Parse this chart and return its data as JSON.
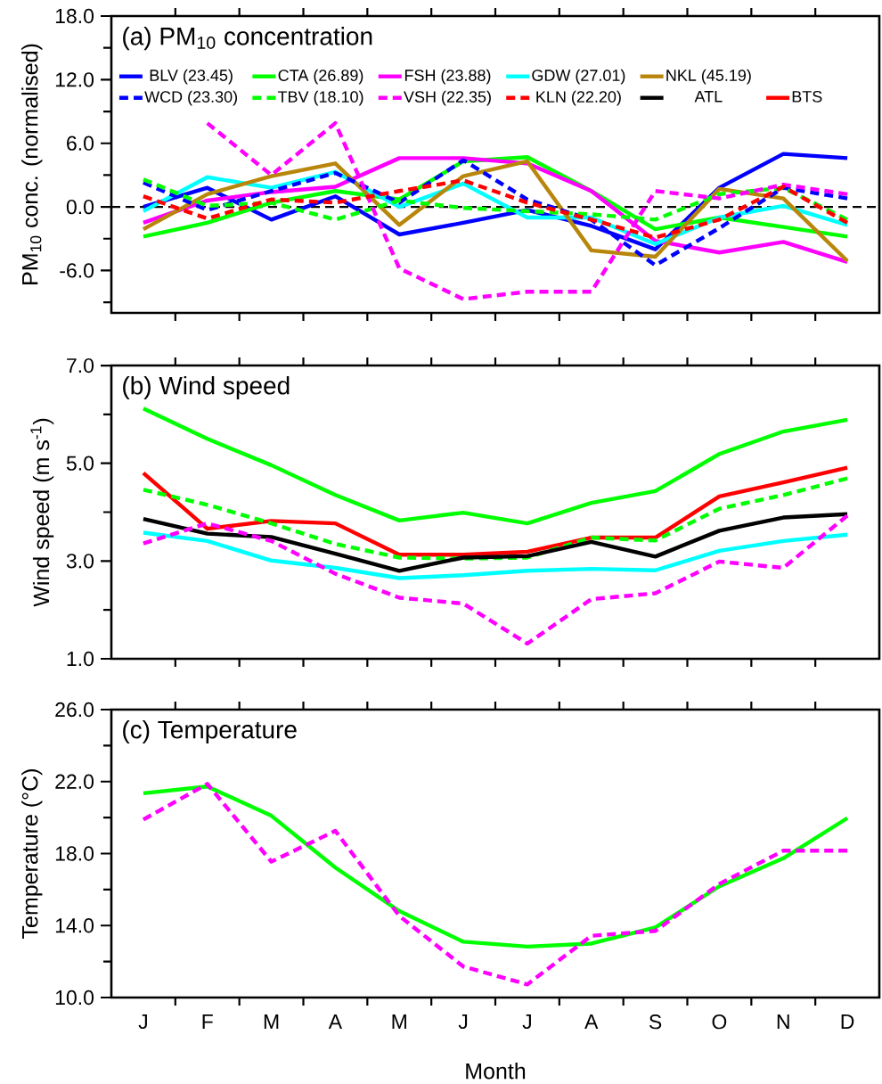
{
  "chart_data": [
    {
      "type": "line",
      "title": "(a) PM$_{10}$ concentration",
      "ylabel": "PM$_{10}$ conc. (normalised)",
      "categories": [
        null,
        null,
        null,
        null,
        null,
        null,
        null,
        null,
        null,
        null,
        null,
        null
      ],
      "ylim": [
        -10,
        18
      ],
      "yticks": [
        {
          "value": -9,
          "label": null
        },
        {
          "value": -6,
          "label": "-6.0"
        },
        {
          "value": -3,
          "label": null
        },
        {
          "value": 0,
          "label": "0.0"
        },
        {
          "value": 3,
          "label": null
        },
        {
          "value": 6,
          "label": "6.0"
        },
        {
          "value": 9,
          "label": null
        },
        {
          "value": 12,
          "label": "12.0"
        },
        {
          "value": 15,
          "label": null
        },
        {
          "value": 18,
          "label": "18.0"
        }
      ],
      "tick_labels": "y",
      "legend": "top",
      "ref_lines": [
        {
          "axis": "y",
          "value": 0,
          "color": "#000000",
          "line_style": "dashed"
        }
      ],
      "series": [
        {
          "name": "BLV (23.45)",
          "color": "#0000ff",
          "line_style": "solid",
          "values": [
            0,
            1.8,
            -1.2,
            1.0,
            -2.6,
            -1.5,
            -0.3,
            -1.8,
            -4.0,
            1.8,
            5.0,
            4.6
          ]
        },
        {
          "name": "CTA (26.89)",
          "color": "#00ff00",
          "line_style": "solid",
          "values": [
            -2.8,
            -1.5,
            0.4,
            1.5,
            0.7,
            4.3,
            4.7,
            1.5,
            -2.1,
            -1.0,
            -1.9,
            -2.8
          ]
        },
        {
          "name": "FSH (23.88)",
          "color": "#ff00ff",
          "line_style": "solid",
          "values": [
            -1.5,
            0.6,
            1.4,
            1.9,
            4.6,
            4.6,
            4.1,
            1.5,
            -3.2,
            -4.3,
            -3.3,
            -5.2
          ]
        },
        {
          "name": "GDW (27.01)",
          "color": "#00ffff",
          "line_style": "solid",
          "values": [
            -0.4,
            2.8,
            1.8,
            3.3,
            0,
            2.2,
            -1.0,
            -1.0,
            -3.5,
            -1.0,
            0.1,
            -1.7
          ]
        },
        {
          "name": "NKL (45.19)",
          "color": "#b8860b",
          "line_style": "solid",
          "values": [
            -2.1,
            1.2,
            2.9,
            4.1,
            -1.7,
            2.9,
            4.3,
            -4.1,
            -4.7,
            1.7,
            0.8,
            -5.1
          ]
        },
        {
          "name": "WCD (23.30)",
          "color": "#0000ff",
          "line_style": "dashed",
          "values": [
            2.3,
            -0.3,
            1.5,
            3.2,
            0.4,
            4.4,
            0.7,
            -1.2,
            -5.5,
            -2.0,
            1.8,
            0.8
          ]
        },
        {
          "name": "TBV (18.10)",
          "color": "#00ff00",
          "line_style": "dashed",
          "values": [
            2.6,
            0.1,
            0.4,
            -1.2,
            0.6,
            -0.1,
            -0.4,
            -0.7,
            -1.2,
            1.2,
            1.8,
            -1.2
          ]
        },
        {
          "name": "VSH (22.35)",
          "color": "#ff00ff",
          "line_style": "dashed",
          "values": [
            null,
            7.9,
            3.0,
            7.9,
            -5.8,
            -8.7,
            -8.0,
            -8.0,
            1.5,
            0.8,
            2.1,
            1.2
          ]
        },
        {
          "name": "KLN (22.20)",
          "color": "#ff0000",
          "line_style": "dashed",
          "values": [
            1.0,
            -1.1,
            0.7,
            0.4,
            1.5,
            2.5,
            0.4,
            -1.2,
            -2.9,
            -1.2,
            1.9,
            -1.5
          ]
        },
        {
          "name": "ATL",
          "color": "#000000",
          "line_style": "solid",
          "values": [
            null,
            null,
            null,
            null,
            null,
            null,
            null,
            null,
            null,
            null,
            null,
            null
          ]
        },
        {
          "name": "BTS",
          "color": "#ff0000",
          "line_style": "solid",
          "values": [
            null,
            null,
            null,
            null,
            null,
            null,
            null,
            null,
            null,
            null,
            null,
            null
          ]
        }
      ]
    },
    {
      "type": "line",
      "title": "(b) Wind speed",
      "ylabel": "Wind speed (m s$^{-1}$)",
      "categories": [
        null,
        null,
        null,
        null,
        null,
        null,
        null,
        null,
        null,
        null,
        null,
        null
      ],
      "ylim": [
        1,
        7
      ],
      "yticks": [
        {
          "value": 1,
          "label": "1.0"
        },
        {
          "value": 2,
          "label": null
        },
        {
          "value": 3,
          "label": "3.0"
        },
        {
          "value": 4,
          "label": null
        },
        {
          "value": 5,
          "label": "5.0"
        },
        {
          "value": 6,
          "label": null
        },
        {
          "value": 7,
          "label": "7.0"
        }
      ],
      "tick_labels": "y",
      "series": [
        {
          "color": "#00ff00",
          "line_style": "solid",
          "values": [
            6.12,
            5.5,
            4.96,
            4.35,
            3.83,
            3.99,
            3.77,
            4.19,
            4.43,
            5.19,
            5.65,
            5.89
          ]
        },
        {
          "color": "#ff0000",
          "line_style": "solid",
          "values": [
            4.8,
            3.66,
            3.82,
            3.77,
            3.13,
            3.13,
            3.19,
            3.48,
            3.48,
            4.32,
            4.61,
            4.91
          ]
        },
        {
          "color": "#00ff00",
          "line_style": "dashed",
          "values": [
            4.46,
            4.15,
            3.77,
            3.35,
            3.07,
            3.05,
            3.07,
            3.48,
            3.42,
            4.07,
            4.35,
            4.69
          ]
        },
        {
          "color": "#000000",
          "line_style": "solid",
          "values": [
            3.86,
            3.56,
            3.49,
            3.15,
            2.8,
            3.07,
            3.1,
            3.39,
            3.09,
            3.62,
            3.89,
            3.96
          ]
        },
        {
          "color": "#00ffff",
          "line_style": "solid",
          "values": [
            3.58,
            3.41,
            3.01,
            2.86,
            2.65,
            2.71,
            2.8,
            2.84,
            2.81,
            3.21,
            3.41,
            3.54
          ]
        },
        {
          "color": "#ff00ff",
          "line_style": "dashed",
          "values": [
            3.36,
            3.77,
            3.41,
            2.74,
            2.25,
            2.13,
            1.31,
            2.22,
            2.34,
            2.99,
            2.86,
            3.93
          ]
        }
      ]
    },
    {
      "type": "line",
      "title": "(c) Temperature",
      "ylabel": "Temperature (°C)",
      "xlabel": "Month",
      "categories": [
        "J",
        "F",
        "M",
        "A",
        "M",
        "J",
        "J",
        "A",
        "S",
        "O",
        "N",
        "D"
      ],
      "ylim": [
        10,
        26
      ],
      "yticks": [
        {
          "value": 10,
          "label": "10.0"
        },
        {
          "value": 12,
          "label": null
        },
        {
          "value": 14,
          "label": "14.0"
        },
        {
          "value": 16,
          "label": null
        },
        {
          "value": 18,
          "label": "18.0"
        },
        {
          "value": 20,
          "label": null
        },
        {
          "value": 22,
          "label": "22.0"
        },
        {
          "value": 24,
          "label": null
        },
        {
          "value": 26,
          "label": "26.0"
        }
      ],
      "series": [
        {
          "color": "#00ff00",
          "line_style": "solid",
          "values": [
            21.35,
            21.73,
            20.1,
            17.22,
            14.8,
            13.1,
            12.83,
            13.0,
            13.9,
            16.18,
            17.74,
            19.97
          ]
        },
        {
          "color": "#ff00ff",
          "line_style": "dashed",
          "values": [
            19.89,
            21.87,
            17.55,
            19.26,
            14.53,
            11.72,
            10.73,
            13.43,
            13.7,
            16.31,
            18.16,
            18.16
          ]
        }
      ]
    }
  ]
}
